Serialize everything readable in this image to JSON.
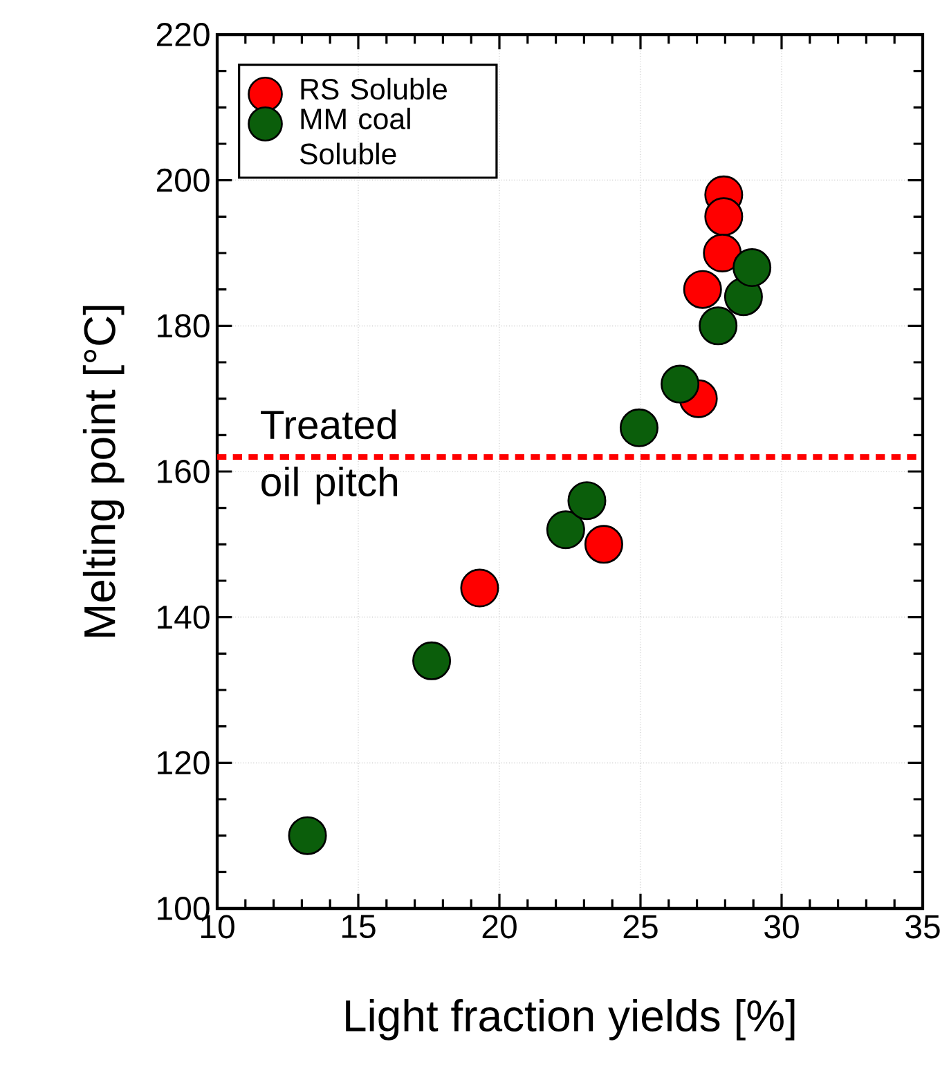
{
  "chart_data": {
    "type": "scatter",
    "xlabel": "Light fraction yields [%]",
    "ylabel": "Melting point [°C]",
    "xlim": [
      10,
      35
    ],
    "xticks": [
      10,
      15,
      20,
      25,
      30,
      35
    ],
    "ylim": [
      100,
      220
    ],
    "yticks": [
      100,
      120,
      140,
      160,
      180,
      200,
      220
    ],
    "grid": true,
    "legend": "top left",
    "marker": "circle",
    "series": [
      {
        "name": "RS Soluble",
        "color": "#ff0000",
        "x": [
          27.95,
          27.95,
          27.9,
          27.2,
          27.05,
          23.7,
          19.3
        ],
        "values": [
          198,
          195,
          190,
          185,
          170,
          150,
          144
        ]
      },
      {
        "name": "MM coal Soluble",
        "color": "#0b5e0b",
        "x": [
          13.2,
          17.6,
          22.35,
          23.1,
          24.95,
          26.4,
          27.75,
          28.65,
          28.95
        ],
        "values": [
          110,
          134,
          152,
          156,
          166,
          172,
          180,
          184,
          188
        ]
      }
    ],
    "ref_lines": [
      {
        "axis": "y",
        "value": 162,
        "label": "Treated oil pitch",
        "color": "#ff0000",
        "line_style": "dashed"
      }
    ]
  }
}
